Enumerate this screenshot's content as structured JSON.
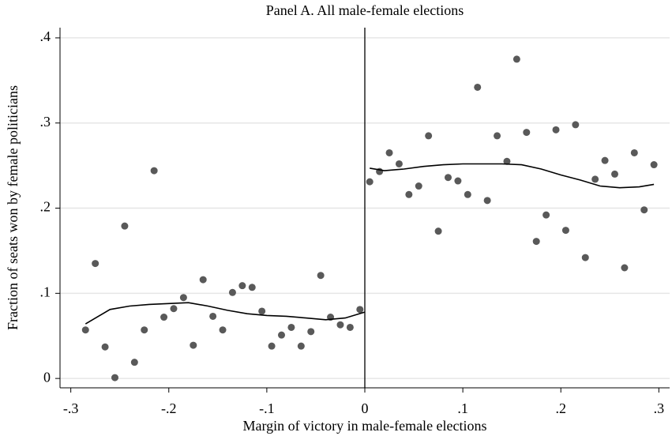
{
  "chart_data": {
    "type": "scatter",
    "title": "Panel A. All male-female elections",
    "x_label": "Margin of victory in male-female elections",
    "y_label": "Fraction of seats won by female politicians",
    "xlim": [
      -0.311,
      0.311
    ],
    "ylim": [
      -0.011,
      0.412
    ],
    "xticks": [
      {
        "value": -0.3,
        "label": "-.3"
      },
      {
        "value": -0.2,
        "label": "-.2"
      },
      {
        "value": -0.1,
        "label": "-.1"
      },
      0,
      {
        "value": 0.1,
        "label": ".1"
      },
      {
        "value": 0.2,
        "label": ".2"
      },
      {
        "value": 0.3,
        "label": ".3"
      }
    ],
    "yticks": [
      0,
      {
        "value": 0.1,
        "label": ".1"
      },
      {
        "value": 0.2,
        "label": ".2"
      },
      {
        "value": 0.3,
        "label": ".3"
      },
      {
        "value": 0.4,
        "label": ".4"
      }
    ],
    "grid": true,
    "cutoff": 0,
    "points": {
      "color": "#595959",
      "x": [
        -0.285,
        -0.275,
        -0.265,
        -0.255,
        -0.245,
        -0.235,
        -0.225,
        -0.215,
        -0.205,
        -0.195,
        -0.185,
        -0.175,
        -0.165,
        -0.155,
        -0.145,
        -0.135,
        -0.125,
        -0.115,
        -0.105,
        -0.095,
        -0.085,
        -0.075,
        -0.065,
        -0.055,
        -0.045,
        -0.035,
        -0.025,
        -0.015,
        -0.005,
        0.005,
        0.015,
        0.025,
        0.035,
        0.045,
        0.055,
        0.065,
        0.075,
        0.085,
        0.095,
        0.105,
        0.115,
        0.125,
        0.135,
        0.145,
        0.155,
        0.165,
        0.175,
        0.185,
        0.195,
        0.205,
        0.215,
        0.225,
        0.235,
        0.245,
        0.255,
        0.265,
        0.275,
        0.285,
        0.295
      ],
      "y": [
        0.057,
        0.135,
        0.037,
        0.001,
        0.179,
        0.019,
        0.057,
        0.244,
        0.072,
        0.082,
        0.095,
        0.039,
        0.116,
        0.073,
        0.057,
        0.101,
        0.109,
        0.107,
        0.079,
        0.038,
        0.051,
        0.06,
        0.038,
        0.055,
        0.121,
        0.072,
        0.063,
        0.06,
        0.081,
        0.231,
        0.243,
        0.265,
        0.252,
        0.216,
        0.226,
        0.285,
        0.173,
        0.236,
        0.232,
        0.216,
        0.342,
        0.209,
        0.285,
        0.255,
        0.375,
        0.289,
        0.161,
        0.192,
        0.292,
        0.174,
        0.298,
        0.142,
        0.234,
        0.256,
        0.24,
        0.13,
        0.265,
        0.198,
        0.251
      ]
    },
    "fits": [
      {
        "color": "#000000",
        "x": [
          -0.285,
          -0.26,
          -0.24,
          -0.22,
          -0.2,
          -0.18,
          -0.16,
          -0.14,
          -0.12,
          -0.1,
          -0.08,
          -0.06,
          -0.04,
          -0.02,
          0
        ],
        "y": [
          0.064,
          0.081,
          0.085,
          0.087,
          0.088,
          0.089,
          0.085,
          0.08,
          0.076,
          0.074,
          0.073,
          0.071,
          0.069,
          0.071,
          0.078
        ]
      },
      {
        "color": "#000000",
        "x": [
          0.005,
          0.02,
          0.04,
          0.06,
          0.08,
          0.1,
          0.12,
          0.14,
          0.16,
          0.18,
          0.2,
          0.22,
          0.24,
          0.26,
          0.28,
          0.295
        ],
        "y": [
          0.247,
          0.244,
          0.246,
          0.249,
          0.251,
          0.252,
          0.252,
          0.252,
          0.251,
          0.246,
          0.239,
          0.233,
          0.226,
          0.224,
          0.225,
          0.228
        ]
      }
    ]
  }
}
